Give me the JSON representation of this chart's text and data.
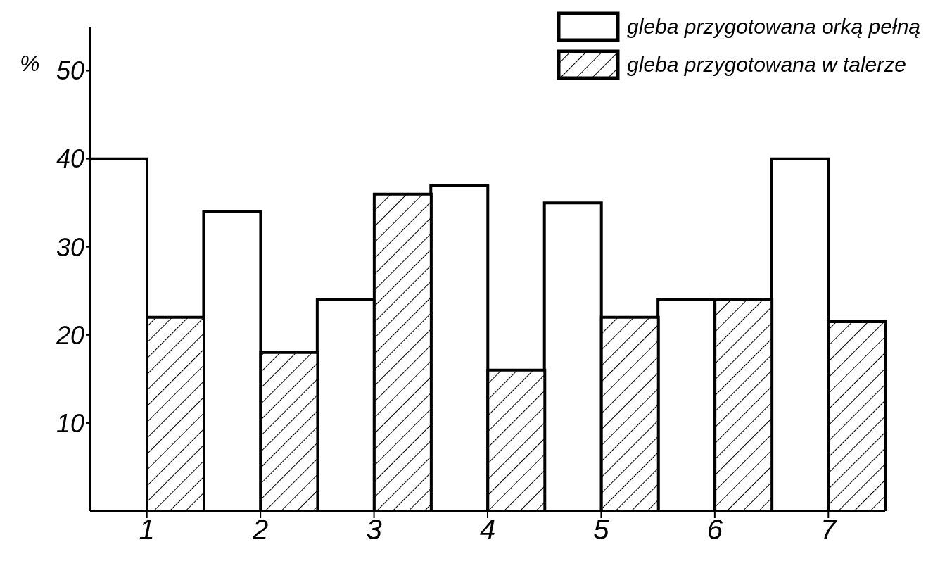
{
  "chart_data": {
    "type": "bar",
    "ylabel": "%",
    "categories": [
      "1",
      "2",
      "3",
      "4",
      "5",
      "6",
      "7"
    ],
    "series": [
      {
        "name": "gleba przygotowana orką pełną",
        "color": "#ffffff",
        "values": [
          40,
          34,
          24,
          37,
          35,
          24,
          40
        ]
      },
      {
        "name": "gleba przygotowana w talerze",
        "color": "#000000",
        "values": [
          22,
          18,
          36,
          16,
          22,
          24,
          21.5
        ]
      }
    ],
    "ylim": [
      0,
      55
    ],
    "yticks": [
      10,
      20,
      30,
      40,
      50
    ],
    "grid": false,
    "legend": "top right"
  }
}
